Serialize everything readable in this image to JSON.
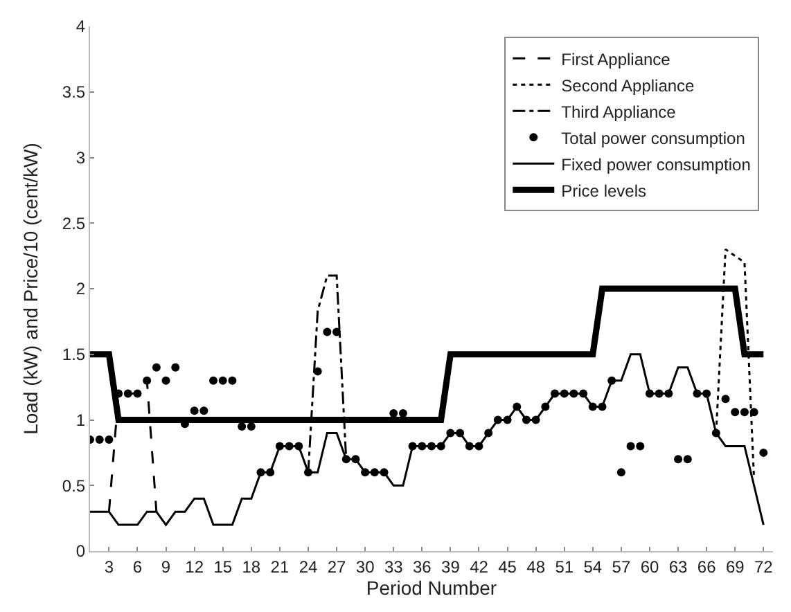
{
  "chart_data": {
    "type": "line",
    "xlabel": "Period Number",
    "ylabel": "Load (kW) and Price/10 (cent/kW)",
    "xlim": [
      1,
      73
    ],
    "xticks": [
      3,
      6,
      9,
      12,
      15,
      18,
      21,
      24,
      27,
      30,
      33,
      36,
      39,
      42,
      45,
      48,
      51,
      54,
      57,
      60,
      63,
      66,
      69,
      72
    ],
    "ylim": [
      0,
      4
    ],
    "yticks": [
      0,
      0.5,
      1,
      1.5,
      2,
      2.5,
      3,
      3.5,
      4
    ],
    "grid": false,
    "legend": "top right",
    "series": [
      {
        "name": "First Appliance",
        "line_style": "dashed",
        "color": "#000000",
        "x": [
          3,
          4,
          5,
          6,
          7,
          8
        ],
        "values": [
          0.3,
          1.2,
          1.2,
          1.2,
          1.3,
          0.3
        ]
      },
      {
        "name": "Second Appliance",
        "line_style": "dotted",
        "color": "#000000",
        "x": [
          67,
          68,
          69,
          70,
          71
        ],
        "values": [
          0.9,
          2.3,
          2.25,
          2.2,
          0.55
        ]
      },
      {
        "name": "Third Appliance",
        "line_style": "dashdot",
        "color": "#000000",
        "x": [
          24,
          25,
          26,
          27,
          28
        ],
        "values": [
          0.6,
          1.83,
          2.1,
          2.1,
          0.7
        ]
      },
      {
        "name": "Total power consumption",
        "type": "scatter",
        "marker": "circle",
        "color": "#000000",
        "x": [
          1,
          2,
          3,
          4,
          5,
          6,
          7,
          8,
          9,
          10,
          11,
          12,
          13,
          14,
          15,
          16,
          17,
          18,
          19,
          20,
          21,
          22,
          23,
          24,
          25,
          26,
          27,
          28,
          29,
          30,
          31,
          32,
          33,
          34,
          35,
          36,
          37,
          38,
          39,
          40,
          41,
          42,
          43,
          44,
          45,
          46,
          47,
          48,
          49,
          50,
          51,
          52,
          53,
          54,
          55,
          56,
          57,
          58,
          59,
          60,
          61,
          62,
          63,
          64,
          65,
          66,
          67,
          68,
          69,
          70,
          71,
          72
        ],
        "values": [
          0.85,
          0.85,
          0.85,
          1.2,
          1.2,
          1.2,
          1.3,
          1.4,
          1.3,
          1.4,
          0.97,
          1.07,
          1.07,
          1.3,
          1.3,
          1.3,
          0.95,
          0.95,
          0.6,
          0.6,
          0.8,
          0.8,
          0.8,
          0.6,
          1.37,
          1.67,
          1.67,
          0.7,
          0.7,
          0.6,
          0.6,
          0.6,
          1.05,
          1.05,
          0.8,
          0.8,
          0.8,
          0.8,
          0.9,
          0.9,
          0.8,
          0.8,
          0.9,
          1,
          1,
          1.1,
          1,
          1,
          1.1,
          1.2,
          1.2,
          1.2,
          1.2,
          1.1,
          1.1,
          1.3,
          0.6,
          0.8,
          0.8,
          1.2,
          1.2,
          1.2,
          0.7,
          0.7,
          1.2,
          1.2,
          0.9,
          1.16,
          1.06,
          1.06,
          1.06,
          0.75
        ]
      },
      {
        "name": "Fixed power consumption",
        "line_style": "solid",
        "color": "#000000",
        "x": [
          1,
          2,
          3,
          4,
          5,
          6,
          7,
          8,
          9,
          10,
          11,
          12,
          13,
          14,
          15,
          16,
          17,
          18,
          19,
          20,
          21,
          22,
          23,
          24,
          25,
          26,
          27,
          28,
          29,
          30,
          31,
          32,
          33,
          34,
          35,
          36,
          37,
          38,
          39,
          40,
          41,
          42,
          43,
          44,
          45,
          46,
          47,
          48,
          49,
          50,
          51,
          52,
          53,
          54,
          55,
          56,
          57,
          58,
          59,
          60,
          61,
          62,
          63,
          64,
          65,
          66,
          67,
          68,
          69,
          70,
          71,
          72
        ],
        "values": [
          0.3,
          0.3,
          0.3,
          0.2,
          0.2,
          0.2,
          0.3,
          0.3,
          0.2,
          0.3,
          0.3,
          0.4,
          0.4,
          0.2,
          0.2,
          0.2,
          0.4,
          0.4,
          0.6,
          0.6,
          0.8,
          0.8,
          0.8,
          0.6,
          0.6,
          0.9,
          0.9,
          0.7,
          0.7,
          0.6,
          0.6,
          0.6,
          0.5,
          0.5,
          0.8,
          0.8,
          0.8,
          0.8,
          0.9,
          0.9,
          0.8,
          0.8,
          0.9,
          1,
          1,
          1.1,
          1,
          1,
          1.1,
          1.2,
          1.2,
          1.2,
          1.2,
          1.1,
          1.1,
          1.3,
          1.3,
          1.5,
          1.5,
          1.2,
          1.2,
          1.2,
          1.4,
          1.4,
          1.2,
          1.2,
          0.9,
          0.8,
          0.8,
          0.8,
          0.5,
          0.2
        ]
      },
      {
        "name": "Price levels",
        "line_style": "solid",
        "color": "#000000",
        "x": [
          1,
          2,
          3,
          4,
          5,
          6,
          7,
          8,
          9,
          10,
          11,
          12,
          13,
          14,
          15,
          16,
          17,
          18,
          19,
          20,
          21,
          22,
          23,
          24,
          25,
          26,
          27,
          28,
          29,
          30,
          31,
          32,
          33,
          34,
          35,
          36,
          37,
          38,
          39,
          40,
          41,
          42,
          43,
          44,
          45,
          46,
          47,
          48,
          49,
          50,
          51,
          52,
          53,
          54,
          55,
          56,
          57,
          58,
          59,
          60,
          61,
          62,
          63,
          64,
          65,
          66,
          67,
          68,
          69,
          70,
          71,
          72
        ],
        "values": [
          1.5,
          1.5,
          1.5,
          1,
          1,
          1,
          1,
          1,
          1,
          1,
          1,
          1,
          1,
          1,
          1,
          1,
          1,
          1,
          1,
          1,
          1,
          1,
          1,
          1,
          1,
          1,
          1,
          1,
          1,
          1,
          1,
          1,
          1,
          1,
          1,
          1,
          1,
          1,
          1.5,
          1.5,
          1.5,
          1.5,
          1.5,
          1.5,
          1.5,
          1.5,
          1.5,
          1.5,
          1.5,
          1.5,
          1.5,
          1.5,
          1.5,
          1.5,
          2,
          2,
          2,
          2,
          2,
          2,
          2,
          2,
          2,
          2,
          2,
          2,
          2,
          2,
          2,
          1.5,
          1.5,
          1.5
        ]
      }
    ]
  }
}
